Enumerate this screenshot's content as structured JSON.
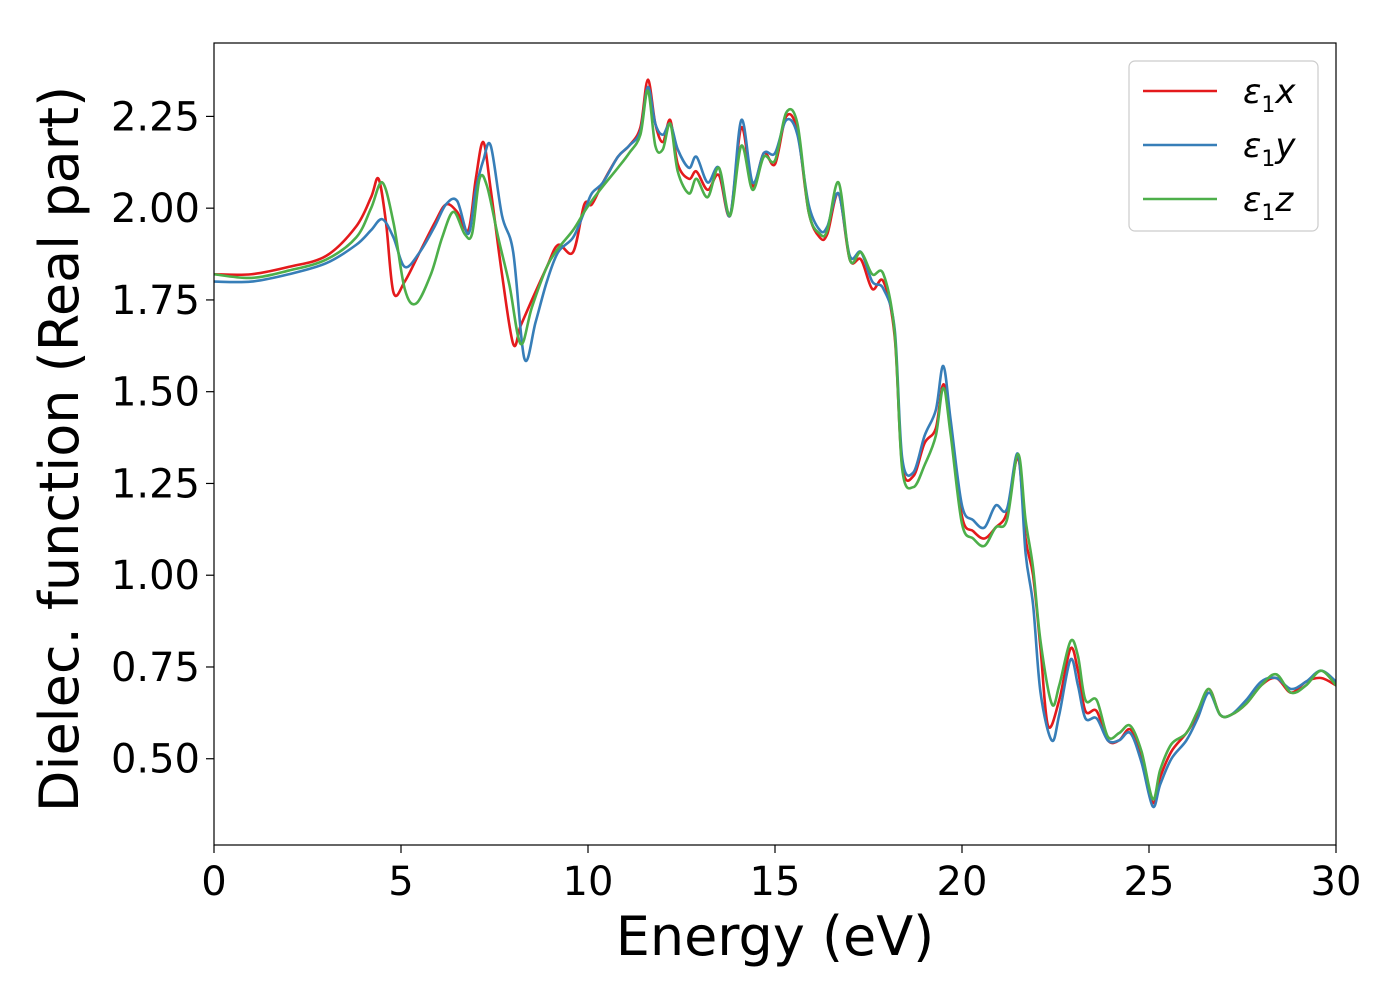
{
  "chart_data": {
    "type": "line",
    "xlabel": "Energy (eV)",
    "ylabel": "Dielec. function (Real part)",
    "xlim": [
      0,
      30
    ],
    "ylim": [
      0.265,
      2.45
    ],
    "xticks": [
      0,
      5,
      10,
      15,
      20,
      25,
      30
    ],
    "xtick_labels": [
      "0",
      "5",
      "10",
      "15",
      "20",
      "25",
      "30"
    ],
    "yticks": [
      0.5,
      0.75,
      1.0,
      1.25,
      1.5,
      1.75,
      2.0,
      2.25
    ],
    "ytick_labels": [
      "0.50",
      "0.75",
      "1.00",
      "1.25",
      "1.50",
      "1.75",
      "2.00",
      "2.25"
    ],
    "grid": false,
    "legend_position": "top-right",
    "series": [
      {
        "name": "ε₁x",
        "legend_base": "ε",
        "legend_sub": "1",
        "legend_var": "x",
        "color": "#e41a1c",
        "x": [
          0,
          1,
          2,
          3,
          3.8,
          4.2,
          4.4,
          4.6,
          4.8,
          5.1,
          5.5,
          5.9,
          6.2,
          6.5,
          6.8,
          7.0,
          7.2,
          7.4,
          7.7,
          8.0,
          8.2,
          8.5,
          8.9,
          9.2,
          9.6,
          9.9,
          10.1,
          10.4,
          10.8,
          11.1,
          11.4,
          11.6,
          11.8,
          12.0,
          12.2,
          12.4,
          12.7,
          12.9,
          13.2,
          13.5,
          13.8,
          14.1,
          14.4,
          14.7,
          15.0,
          15.3,
          15.6,
          15.9,
          16.2,
          16.4,
          16.7,
          17.0,
          17.3,
          17.6,
          17.9,
          18.2,
          18.4,
          18.7,
          19.0,
          19.3,
          19.5,
          19.7,
          20.0,
          20.3,
          20.6,
          20.9,
          21.2,
          21.5,
          21.7,
          21.9,
          22.1,
          22.3,
          22.6,
          22.9,
          23.1,
          23.3,
          23.6,
          23.9,
          24.2,
          24.5,
          24.8,
          25.1,
          25.3,
          25.6,
          26.0,
          26.3,
          26.6,
          26.9,
          27.2,
          27.6,
          28.0,
          28.4,
          28.8,
          29.2,
          29.6,
          30.0
        ],
        "y": [
          1.82,
          1.82,
          1.84,
          1.87,
          1.95,
          2.03,
          2.08,
          1.96,
          1.77,
          1.8,
          1.88,
          1.96,
          2.01,
          1.99,
          1.94,
          2.08,
          2.18,
          2.05,
          1.82,
          1.63,
          1.68,
          1.75,
          1.84,
          1.9,
          1.88,
          2.01,
          2.01,
          2.07,
          2.14,
          2.17,
          2.22,
          2.35,
          2.23,
          2.18,
          2.24,
          2.12,
          2.08,
          2.1,
          2.05,
          2.09,
          1.98,
          2.22,
          2.06,
          2.15,
          2.12,
          2.25,
          2.21,
          1.99,
          1.92,
          1.93,
          2.04,
          1.86,
          1.86,
          1.78,
          1.8,
          1.65,
          1.3,
          1.27,
          1.36,
          1.4,
          1.52,
          1.41,
          1.16,
          1.12,
          1.1,
          1.13,
          1.17,
          1.32,
          1.1,
          1.0,
          0.8,
          0.59,
          0.66,
          0.8,
          0.74,
          0.63,
          0.63,
          0.55,
          0.55,
          0.58,
          0.51,
          0.38,
          0.45,
          0.52,
          0.57,
          0.62,
          0.69,
          0.62,
          0.62,
          0.65,
          0.7,
          0.72,
          0.68,
          0.71,
          0.72,
          0.7
        ]
      },
      {
        "name": "ε₁y",
        "legend_base": "ε",
        "legend_sub": "1",
        "legend_var": "y",
        "color": "#377eb8",
        "x": [
          0,
          1,
          2,
          3,
          3.8,
          4.2,
          4.5,
          4.8,
          5.1,
          5.5,
          5.9,
          6.2,
          6.5,
          6.8,
          7.0,
          7.2,
          7.4,
          7.7,
          8.0,
          8.3,
          8.6,
          8.9,
          9.2,
          9.6,
          9.9,
          10.1,
          10.4,
          10.8,
          11.1,
          11.4,
          11.6,
          11.8,
          12.0,
          12.2,
          12.4,
          12.7,
          12.9,
          13.2,
          13.5,
          13.8,
          14.1,
          14.4,
          14.7,
          15.0,
          15.3,
          15.6,
          15.9,
          16.2,
          16.4,
          16.7,
          17.0,
          17.3,
          17.6,
          17.9,
          18.2,
          18.4,
          18.7,
          19.0,
          19.3,
          19.5,
          19.7,
          20.0,
          20.3,
          20.6,
          20.9,
          21.2,
          21.5,
          21.7,
          21.9,
          22.1,
          22.4,
          22.6,
          22.9,
          23.1,
          23.3,
          23.6,
          23.9,
          24.2,
          24.5,
          24.8,
          25.1,
          25.3,
          25.6,
          26.0,
          26.3,
          26.6,
          26.9,
          27.2,
          27.6,
          28.0,
          28.4,
          28.8,
          29.2,
          29.6,
          30.0
        ],
        "y": [
          1.8,
          1.8,
          1.82,
          1.85,
          1.9,
          1.94,
          1.97,
          1.92,
          1.84,
          1.88,
          1.95,
          2.01,
          2.02,
          1.93,
          2.05,
          2.13,
          2.17,
          1.98,
          1.88,
          1.59,
          1.69,
          1.8,
          1.88,
          1.92,
          1.99,
          2.04,
          2.07,
          2.14,
          2.17,
          2.21,
          2.33,
          2.23,
          2.2,
          2.23,
          2.16,
          2.11,
          2.14,
          2.07,
          2.11,
          1.98,
          2.24,
          2.07,
          2.15,
          2.15,
          2.24,
          2.2,
          2.01,
          1.94,
          1.95,
          2.04,
          1.87,
          1.88,
          1.8,
          1.78,
          1.67,
          1.32,
          1.28,
          1.38,
          1.45,
          1.57,
          1.42,
          1.19,
          1.15,
          1.13,
          1.19,
          1.18,
          1.33,
          1.06,
          0.92,
          0.68,
          0.55,
          0.62,
          0.77,
          0.7,
          0.61,
          0.61,
          0.55,
          0.55,
          0.57,
          0.49,
          0.37,
          0.43,
          0.5,
          0.55,
          0.61,
          0.68,
          0.62,
          0.62,
          0.66,
          0.71,
          0.72,
          0.69,
          0.71,
          0.74,
          0.71
        ]
      },
      {
        "name": "ε₁z",
        "legend_base": "ε",
        "legend_sub": "1",
        "legend_var": "z",
        "color": "#4daf4a",
        "x": [
          0,
          1,
          2,
          3,
          3.8,
          4.2,
          4.5,
          4.8,
          5.1,
          5.4,
          5.8,
          6.1,
          6.4,
          6.7,
          6.9,
          7.1,
          7.3,
          7.6,
          7.9,
          8.2,
          8.5,
          8.9,
          9.2,
          9.6,
          9.9,
          10.1,
          10.4,
          10.8,
          11.1,
          11.4,
          11.6,
          11.8,
          12.0,
          12.2,
          12.4,
          12.7,
          12.9,
          13.2,
          13.5,
          13.8,
          14.1,
          14.4,
          14.7,
          15.0,
          15.3,
          15.6,
          15.9,
          16.2,
          16.4,
          16.7,
          17.0,
          17.3,
          17.6,
          17.9,
          18.2,
          18.4,
          18.7,
          19.0,
          19.3,
          19.5,
          19.7,
          20.0,
          20.3,
          20.6,
          20.9,
          21.2,
          21.5,
          21.7,
          21.9,
          22.1,
          22.4,
          22.6,
          22.9,
          23.1,
          23.3,
          23.6,
          23.9,
          24.2,
          24.5,
          24.8,
          25.1,
          25.3,
          25.6,
          26.0,
          26.3,
          26.6,
          26.9,
          27.2,
          27.6,
          28.0,
          28.4,
          28.8,
          29.2,
          29.6,
          30.0
        ],
        "y": [
          1.82,
          1.81,
          1.83,
          1.86,
          1.92,
          2.0,
          2.07,
          1.96,
          1.78,
          1.74,
          1.82,
          1.92,
          1.99,
          1.93,
          1.93,
          2.08,
          2.06,
          1.92,
          1.79,
          1.63,
          1.73,
          1.84,
          1.89,
          1.94,
          1.99,
          2.02,
          2.06,
          2.11,
          2.15,
          2.2,
          2.32,
          2.17,
          2.16,
          2.23,
          2.1,
          2.04,
          2.08,
          2.03,
          2.11,
          1.98,
          2.17,
          2.05,
          2.14,
          2.13,
          2.26,
          2.23,
          1.99,
          1.93,
          1.94,
          2.07,
          1.86,
          1.88,
          1.82,
          1.82,
          1.66,
          1.29,
          1.24,
          1.3,
          1.38,
          1.51,
          1.38,
          1.14,
          1.1,
          1.08,
          1.13,
          1.15,
          1.33,
          1.15,
          1.02,
          0.82,
          0.65,
          0.7,
          0.82,
          0.78,
          0.66,
          0.66,
          0.56,
          0.57,
          0.59,
          0.52,
          0.39,
          0.47,
          0.54,
          0.57,
          0.63,
          0.69,
          0.62,
          0.62,
          0.65,
          0.7,
          0.73,
          0.68,
          0.7,
          0.74,
          0.7
        ]
      }
    ]
  }
}
